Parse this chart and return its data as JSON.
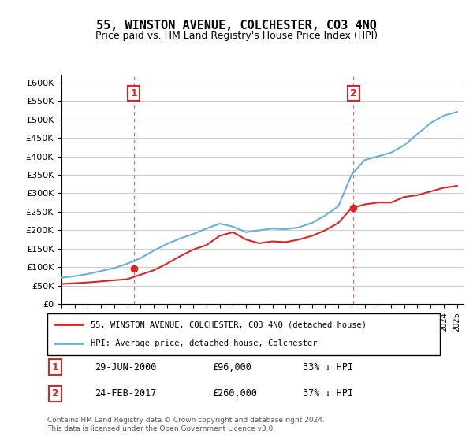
{
  "title": "55, WINSTON AVENUE, COLCHESTER, CO3 4NQ",
  "subtitle": "Price paid vs. HM Land Registry's House Price Index (HPI)",
  "ylabel_ticks": [
    "£0",
    "£50K",
    "£100K",
    "£150K",
    "£200K",
    "£250K",
    "£300K",
    "£350K",
    "£400K",
    "£450K",
    "£500K",
    "£550K",
    "£600K"
  ],
  "ytick_values": [
    0,
    50000,
    100000,
    150000,
    200000,
    250000,
    300000,
    350000,
    400000,
    450000,
    500000,
    550000,
    600000
  ],
  "ylim": [
    0,
    620000
  ],
  "xlim_start": 1995.0,
  "xlim_end": 2025.5,
  "sale1_x": 2000.5,
  "sale1_y": 96000,
  "sale1_label": "1",
  "sale1_date": "29-JUN-2000",
  "sale1_price": "£96,000",
  "sale1_pct": "33% ↓ HPI",
  "sale2_x": 2017.15,
  "sale2_y": 260000,
  "sale2_label": "2",
  "sale2_date": "24-FEB-2017",
  "sale2_price": "£260,000",
  "sale2_pct": "37% ↓ HPI",
  "legend_line1": "55, WINSTON AVENUE, COLCHESTER, CO3 4NQ (detached house)",
  "legend_line2": "HPI: Average price, detached house, Colchester",
  "footnote": "Contains HM Land Registry data © Crown copyright and database right 2024.\nThis data is licensed under the Open Government Licence v3.0.",
  "hpi_color": "#6baed6",
  "sale_color": "#d62728",
  "vline_color": "#d62728",
  "background_color": "#ffffff",
  "grid_color": "#cccccc",
  "years": [
    1995,
    1996,
    1997,
    1998,
    1999,
    2000,
    2001,
    2002,
    2003,
    2004,
    2005,
    2006,
    2007,
    2008,
    2009,
    2010,
    2011,
    2012,
    2013,
    2014,
    2015,
    2016,
    2017,
    2018,
    2019,
    2020,
    2021,
    2022,
    2023,
    2024,
    2025
  ],
  "hpi_values": [
    72000,
    76000,
    82000,
    90000,
    98000,
    110000,
    125000,
    145000,
    163000,
    178000,
    190000,
    205000,
    218000,
    210000,
    195000,
    200000,
    205000,
    203000,
    208000,
    220000,
    240000,
    265000,
    350000,
    390000,
    400000,
    410000,
    430000,
    460000,
    490000,
    510000,
    520000
  ],
  "sale_years": [
    1995,
    1996,
    1997,
    1998,
    1999,
    2000,
    2001,
    2002,
    2003,
    2004,
    2005,
    2006,
    2007,
    2008,
    2009,
    2010,
    2011,
    2012,
    2013,
    2014,
    2015,
    2016,
    2017,
    2018,
    2019,
    2020,
    2021,
    2022,
    2023,
    2024,
    2025
  ],
  "sale_values": [
    55000,
    57000,
    59000,
    62000,
    65000,
    68000,
    80000,
    92000,
    110000,
    130000,
    148000,
    160000,
    185000,
    195000,
    175000,
    165000,
    170000,
    168000,
    175000,
    185000,
    200000,
    220000,
    260000,
    270000,
    275000,
    275000,
    290000,
    295000,
    305000,
    315000,
    320000
  ]
}
